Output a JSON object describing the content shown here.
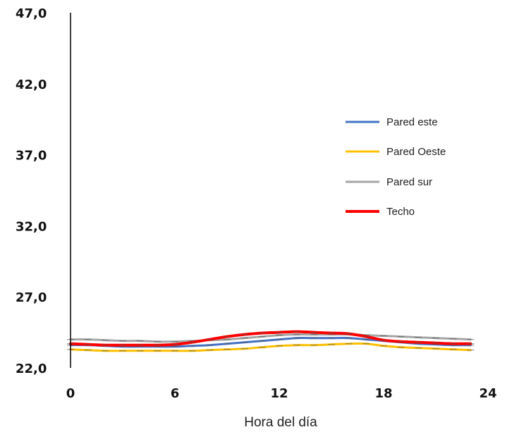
{
  "chart_data": {
    "type": "line",
    "title": "",
    "xlabel": "Hora del día",
    "ylabel": "",
    "xlim": [
      0,
      24
    ],
    "ylim": [
      22,
      47
    ],
    "x_ticks": [
      0,
      6,
      12,
      18,
      24
    ],
    "x_tick_labels": [
      "0",
      "6",
      "12",
      "18",
      "24"
    ],
    "y_ticks": [
      22,
      27,
      32,
      37,
      42,
      47
    ],
    "y_tick_labels": [
      "22,0",
      "27,0",
      "32,0",
      "37,0",
      "42,0",
      "47,0"
    ],
    "grid": false,
    "legend_position": "right",
    "x": [
      0,
      1,
      2,
      3,
      4,
      5,
      6,
      7,
      8,
      9,
      10,
      11,
      12,
      13,
      14,
      15,
      16,
      17,
      18,
      19,
      20,
      21,
      22,
      23
    ],
    "series": [
      {
        "name": "Pared este",
        "color": "#4472C4",
        "values": [
          23.6,
          23.6,
          23.55,
          23.5,
          23.5,
          23.5,
          23.5,
          23.55,
          23.6,
          23.7,
          23.8,
          23.9,
          24.0,
          24.1,
          24.1,
          24.1,
          24.1,
          24.0,
          23.9,
          23.8,
          23.7,
          23.65,
          23.6,
          23.6
        ]
      },
      {
        "name": "Pared Oeste",
        "color": "#FFC000",
        "values": [
          23.3,
          23.25,
          23.2,
          23.2,
          23.2,
          23.2,
          23.2,
          23.2,
          23.25,
          23.3,
          23.35,
          23.45,
          23.55,
          23.6,
          23.6,
          23.65,
          23.7,
          23.7,
          23.55,
          23.45,
          23.4,
          23.35,
          23.3,
          23.25
        ]
      },
      {
        "name": "Pared sur",
        "color": "#A5A5A5",
        "values": [
          24.0,
          24.0,
          23.95,
          23.9,
          23.9,
          23.85,
          23.85,
          23.9,
          23.95,
          24.0,
          24.1,
          24.2,
          24.3,
          24.35,
          24.35,
          24.35,
          24.35,
          24.3,
          24.25,
          24.2,
          24.15,
          24.1,
          24.05,
          24.0
        ]
      },
      {
        "name": "Techo",
        "color": "#FF0000",
        "values": [
          23.7,
          23.65,
          23.6,
          23.6,
          23.6,
          23.6,
          23.65,
          23.8,
          24.0,
          24.2,
          24.35,
          24.45,
          24.5,
          24.55,
          24.5,
          24.45,
          24.4,
          24.2,
          23.95,
          23.85,
          23.8,
          23.75,
          23.7,
          23.7
        ]
      }
    ]
  }
}
